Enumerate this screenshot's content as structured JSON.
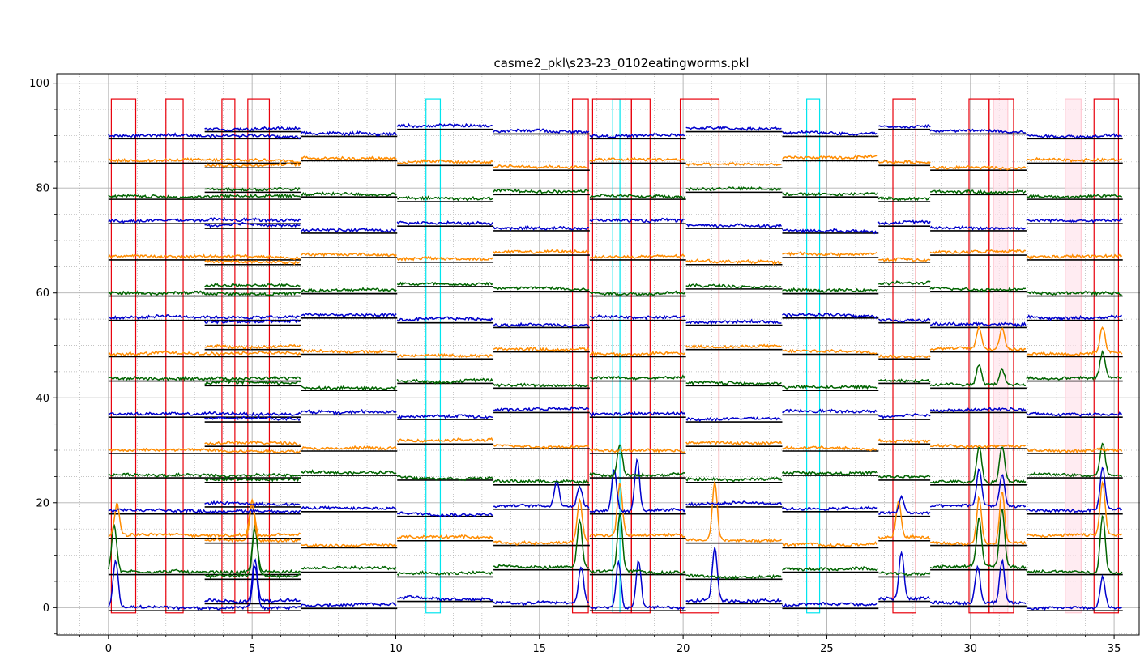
{
  "chart_data": {
    "type": "line",
    "title": "casme2_pkl\\s23-23_0102eatingworms.pkl",
    "xlabel": "",
    "ylabel": "",
    "xlim": [
      -1.8,
      35.9
    ],
    "ylim": [
      -5.2,
      101.8
    ],
    "x_ticks": [
      0,
      5,
      10,
      15,
      20,
      25,
      30,
      35
    ],
    "y_ticks": [
      0,
      20,
      40,
      60,
      80,
      100
    ],
    "grid": "major solid, minor dotted",
    "legend": "none",
    "colors": {
      "red_box": "#e8000b",
      "cyan_box": "#00e5ee",
      "pink_box": "#ffc0cb",
      "baseline": "#000000",
      "series_cycle": [
        "#0000cc",
        "#006400",
        "#ff8c00"
      ]
    },
    "segments": [
      {
        "x_start": 0.0,
        "x_end": 6.7
      },
      {
        "x_start": 3.35,
        "x_end": 6.7
      },
      {
        "x_start": 6.7,
        "x_end": 10.05
      },
      {
        "x_start": 10.05,
        "x_end": 13.4
      },
      {
        "x_start": 13.4,
        "x_end": 16.75
      },
      {
        "x_start": 16.75,
        "x_end": 20.1
      },
      {
        "x_start": 20.1,
        "x_end": 23.45
      },
      {
        "x_start": 23.45,
        "x_end": 26.8
      },
      {
        "x_start": 26.8,
        "x_end": 28.6
      },
      {
        "x_start": 28.6,
        "x_end": 31.95
      },
      {
        "x_start": 31.95,
        "x_end": 35.3
      }
    ],
    "red_boxes": [
      {
        "x0": 0.1,
        "x1": 0.95,
        "y0": -1,
        "y1": 97
      },
      {
        "x0": 2.0,
        "x1": 2.6,
        "y0": -1,
        "y1": 97
      },
      {
        "x0": 3.95,
        "x1": 4.4,
        "y0": -1,
        "y1": 97
      },
      {
        "x0": 4.85,
        "x1": 5.6,
        "y0": -1,
        "y1": 97
      },
      {
        "x0": 16.15,
        "x1": 16.7,
        "y0": -1,
        "y1": 97
      },
      {
        "x0": 16.85,
        "x1": 18.2,
        "y0": -1,
        "y1": 97
      },
      {
        "x0": 18.2,
        "x1": 18.85,
        "y0": -1,
        "y1": 97
      },
      {
        "x0": 19.9,
        "x1": 21.25,
        "y0": -1,
        "y1": 97
      },
      {
        "x0": 27.3,
        "x1": 28.1,
        "y0": -1,
        "y1": 97
      },
      {
        "x0": 29.95,
        "x1": 30.65,
        "y0": -1,
        "y1": 97
      },
      {
        "x0": 30.65,
        "x1": 31.5,
        "y0": -1,
        "y1": 97
      },
      {
        "x0": 34.3,
        "x1": 35.15,
        "y0": -1,
        "y1": 97
      }
    ],
    "cyan_boxes": [
      {
        "x0": 11.05,
        "x1": 11.55,
        "y0": -1,
        "y1": 97
      },
      {
        "x0": 17.55,
        "x1": 17.8,
        "y0": -1,
        "y1": 97
      },
      {
        "x0": 24.3,
        "x1": 24.75,
        "y0": -1,
        "y1": 97
      }
    ],
    "pink_boxes": [
      {
        "x0": 30.8,
        "x1": 31.3,
        "y0": -1,
        "y1": 97
      },
      {
        "x0": 33.3,
        "x1": 33.85,
        "y0": -1,
        "y1": 97
      }
    ],
    "traces": [
      {
        "offset": 0,
        "color": "#0000cc",
        "peaks": [
          [
            0.25,
            9
          ],
          [
            5.1,
            8
          ],
          [
            16.45,
            7
          ],
          [
            17.75,
            9
          ],
          [
            18.45,
            9
          ],
          [
            21.1,
            10
          ],
          [
            27.6,
            9
          ],
          [
            30.25,
            7
          ],
          [
            31.1,
            8
          ],
          [
            34.6,
            6
          ]
        ]
      },
      {
        "offset": 6,
        "color": "#006400",
        "peaks": [
          [
            0.2,
            9
          ],
          [
            5.1,
            9
          ],
          [
            16.4,
            9
          ],
          [
            17.8,
            11
          ],
          [
            30.3,
            9
          ],
          [
            31.1,
            11
          ],
          [
            34.6,
            11
          ]
        ]
      },
      {
        "offset": 12,
        "color": "#ff8c00",
        "peaks": [
          [
            0.3,
            6
          ],
          [
            5.0,
            7
          ],
          [
            16.4,
            8
          ],
          [
            17.8,
            10
          ],
          [
            21.1,
            11
          ],
          [
            27.5,
            7
          ],
          [
            30.3,
            9
          ],
          [
            31.1,
            10
          ],
          [
            34.6,
            10
          ]
        ]
      },
      {
        "offset": 18,
        "color": "#0000cc",
        "peaks": [
          [
            15.6,
            5
          ],
          [
            16.4,
            4
          ],
          [
            17.6,
            8
          ],
          [
            18.4,
            10
          ],
          [
            27.6,
            3
          ],
          [
            30.3,
            7
          ],
          [
            31.1,
            6
          ],
          [
            34.6,
            8
          ]
        ]
      },
      {
        "offset": 24,
        "color": "#006400",
        "peaks": [
          [
            17.8,
            6
          ],
          [
            30.3,
            7
          ],
          [
            31.1,
            7
          ],
          [
            34.6,
            6
          ]
        ]
      },
      {
        "offset": 30,
        "color": "#ff8c00",
        "peaks": []
      },
      {
        "offset": 36,
        "color": "#0000cc",
        "peaks": []
      },
      {
        "offset": 42,
        "color": "#006400",
        "peaks": [
          [
            30.3,
            4
          ],
          [
            31.1,
            3
          ],
          [
            34.6,
            5
          ]
        ]
      },
      {
        "offset": 48,
        "color": "#ff8c00",
        "peaks": [
          [
            30.3,
            4
          ],
          [
            31.1,
            4
          ],
          [
            34.6,
            5
          ]
        ]
      },
      {
        "offset": 54,
        "color": "#0000cc",
        "peaks": []
      },
      {
        "offset": 60,
        "color": "#006400",
        "peaks": []
      },
      {
        "offset": 66,
        "color": "#ff8c00",
        "peaks": []
      },
      {
        "offset": 72,
        "color": "#0000cc",
        "peaks": []
      },
      {
        "offset": 78,
        "color": "#006400",
        "peaks": []
      },
      {
        "offset": 84,
        "color": "#ff8c00",
        "peaks": []
      },
      {
        "offset": 90,
        "color": "#0000cc",
        "peaks": []
      }
    ]
  }
}
